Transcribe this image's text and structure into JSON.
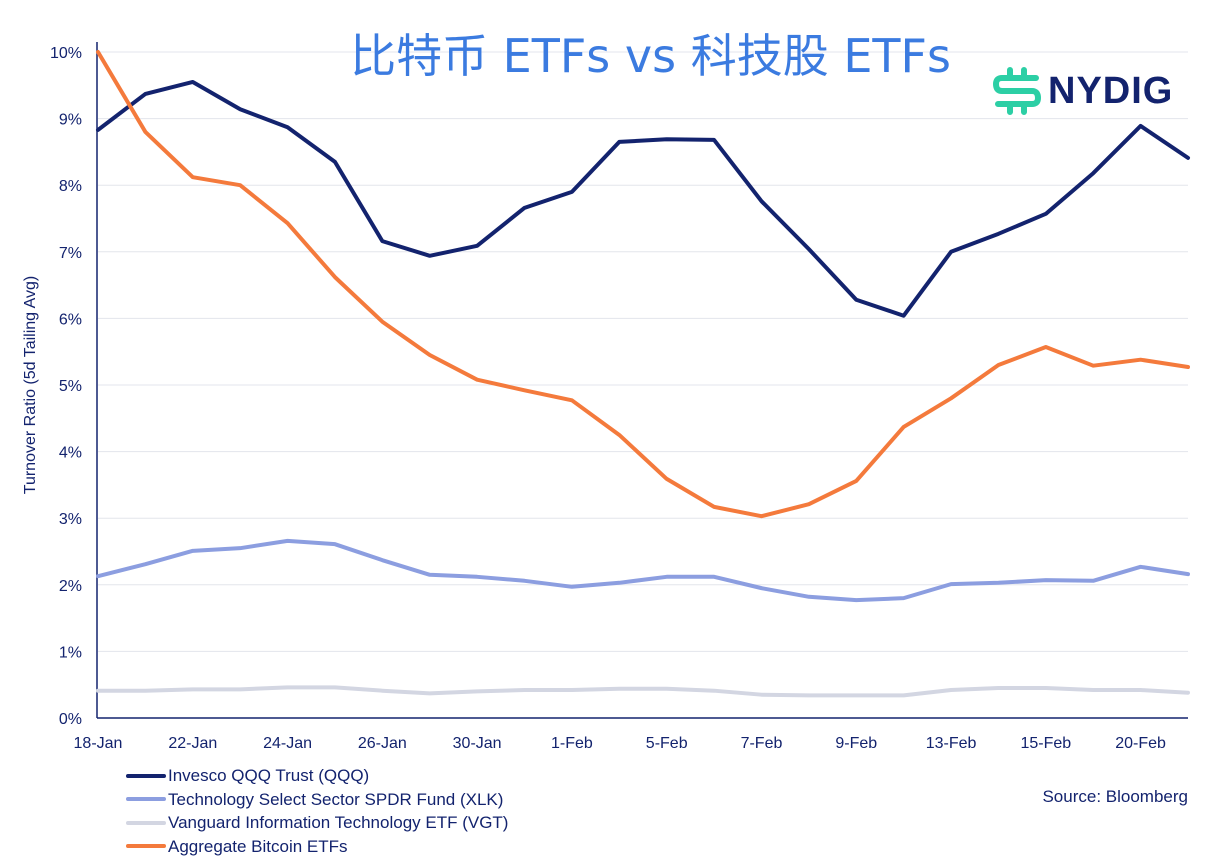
{
  "chart_data": {
    "type": "line",
    "title": "比特币 ETFs vs 科技股 ETFs",
    "xlabel": "",
    "ylabel": "Turnover Ratio (5d Tailing Avg)",
    "ylim": [
      0,
      10
    ],
    "yticks": [
      "0%",
      "1%",
      "2%",
      "3%",
      "4%",
      "5%",
      "6%",
      "7%",
      "8%",
      "9%",
      "10%"
    ],
    "grid": true,
    "legend_position": "bottom-left",
    "categories": [
      "18-Jan",
      "",
      "22-Jan",
      "",
      "24-Jan",
      "",
      "26-Jan",
      "",
      "30-Jan",
      "",
      "1-Feb",
      "",
      "5-Feb",
      "",
      "7-Feb",
      "",
      "9-Feb",
      "",
      "13-Feb",
      "",
      "15-Feb",
      "",
      "20-Feb",
      ""
    ],
    "series": [
      {
        "name": "Invesco QQQ Trust (QQQ)",
        "color": "#13236e",
        "values": [
          8.83,
          9.37,
          9.55,
          9.14,
          8.87,
          8.35,
          7.16,
          6.94,
          7.09,
          7.66,
          7.9,
          8.65,
          8.69,
          8.68,
          7.76,
          7.04,
          6.28,
          6.04,
          7.0,
          7.27,
          7.57,
          8.18,
          8.89,
          8.41
        ]
      },
      {
        "name": "Technology Select Sector SPDR Fund (XLK)",
        "color": "#8c9ee0",
        "values": [
          2.13,
          2.31,
          2.51,
          2.55,
          2.66,
          2.61,
          2.37,
          2.15,
          2.12,
          2.06,
          1.97,
          2.03,
          2.12,
          2.12,
          1.95,
          1.82,
          1.77,
          1.8,
          2.01,
          2.03,
          2.07,
          2.06,
          2.27,
          2.16
        ]
      },
      {
        "name": "Vanguard Information Technology ETF (VGT)",
        "color": "#d3d6e2",
        "values": [
          0.41,
          0.41,
          0.43,
          0.43,
          0.46,
          0.46,
          0.41,
          0.37,
          0.4,
          0.42,
          0.42,
          0.44,
          0.44,
          0.41,
          0.35,
          0.34,
          0.34,
          0.34,
          0.42,
          0.45,
          0.45,
          0.42,
          0.42,
          0.38
        ]
      },
      {
        "name": "Aggregate Bitcoin ETFs",
        "color": "#f47a3c",
        "values": [
          10.0,
          8.8,
          8.12,
          8.0,
          7.43,
          6.62,
          5.95,
          5.45,
          5.08,
          4.92,
          4.77,
          4.25,
          3.59,
          3.17,
          3.03,
          3.21,
          3.56,
          4.37,
          4.8,
          5.3,
          5.57,
          5.29,
          5.38,
          5.27
        ]
      }
    ]
  },
  "logo": {
    "text": "NYDIG",
    "color": "#2ccfa5"
  },
  "source": "Source: Bloomberg"
}
